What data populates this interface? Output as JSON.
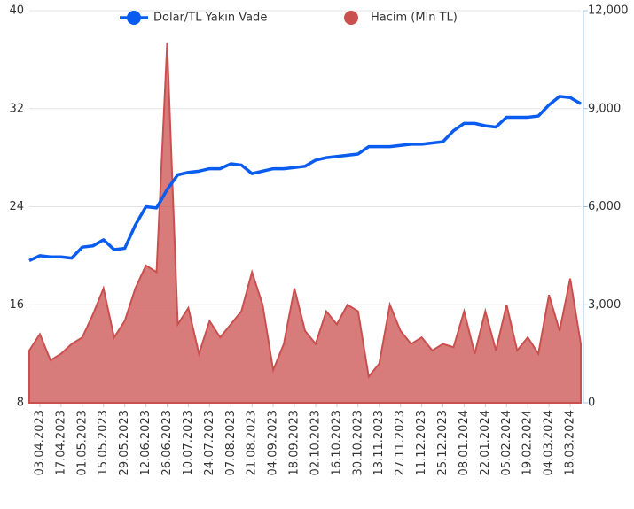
{
  "chart_data": {
    "type": "line-area",
    "categories": [
      null,
      "03.04.2023",
      null,
      "17.04.2023",
      null,
      "01.05.2023",
      null,
      "15.05.2023",
      null,
      "29.05.2023",
      null,
      "12.06.2023",
      null,
      "26.06.2023",
      null,
      "10.07.2023",
      null,
      "24.07.2023",
      null,
      "07.08.2023",
      null,
      "21.08.2023",
      null,
      "04.09.2023",
      null,
      "18.09.2023",
      null,
      "02.10.2023",
      null,
      "16.10.2023",
      null,
      "30.10.2023",
      null,
      "13.11.2023",
      null,
      "27.11.2023",
      null,
      "11.12.2023",
      null,
      "25.12.2023",
      null,
      "08.01.2024",
      null,
      "22.01.2024",
      null,
      "05.02.2024",
      null,
      "19.02.2024",
      null,
      "04.03.2024",
      null,
      "18.03.2024",
      null
    ],
    "series": [
      {
        "name": "Dolar/TL Yakın Vade",
        "color": "#0a5cf0",
        "kind": "line",
        "values": [
          19.6,
          20.0,
          19.9,
          19.9,
          19.8,
          20.7,
          20.8,
          21.3,
          20.5,
          20.6,
          22.5,
          24.0,
          23.9,
          25.4,
          26.6,
          26.8,
          26.9,
          27.1,
          27.1,
          27.5,
          27.4,
          26.7,
          26.9,
          27.1,
          27.1,
          27.2,
          27.3,
          27.8,
          28.0,
          28.1,
          28.2,
          28.3,
          28.9,
          28.9,
          28.9,
          29.0,
          29.1,
          29.1,
          29.2,
          29.3,
          30.2,
          30.8,
          30.8,
          30.6,
          30.5,
          31.3,
          31.3,
          31.3,
          31.4,
          32.3,
          33.0,
          32.9,
          32.4
        ]
      },
      {
        "name": "Hacim (Mln TL)",
        "color": "#c9504f",
        "kind": "area",
        "axis": "y2",
        "values": [
          1600,
          2100,
          1300,
          1500,
          1800,
          2000,
          2700,
          3500,
          2000,
          2500,
          3500,
          4200,
          4000,
          11000,
          2400,
          2900,
          1500,
          2500,
          2000,
          2400,
          2800,
          4000,
          3000,
          1000,
          1800,
          3500,
          2200,
          1800,
          2800,
          2400,
          3000,
          2800,
          800,
          1200,
          3000,
          2200,
          1800,
          2000,
          1600,
          1800,
          1700,
          2800,
          1500,
          2800,
          1600,
          3000,
          1600,
          2000,
          1500,
          3300,
          2200,
          3800,
          1800
        ]
      }
    ],
    "ylim": [
      8,
      40
    ],
    "yticks": [
      8,
      16,
      24,
      32,
      40
    ],
    "y2lim": [
      0,
      12000
    ],
    "y2ticks": [
      0,
      {
        "value": 3000,
        "label": "3,000"
      },
      {
        "value": 6000,
        "label": "6,000"
      },
      {
        "value": 9000,
        "label": "9,000"
      },
      {
        "value": 12000,
        "label": "12,000"
      }
    ],
    "grid": true,
    "legend": "top"
  }
}
